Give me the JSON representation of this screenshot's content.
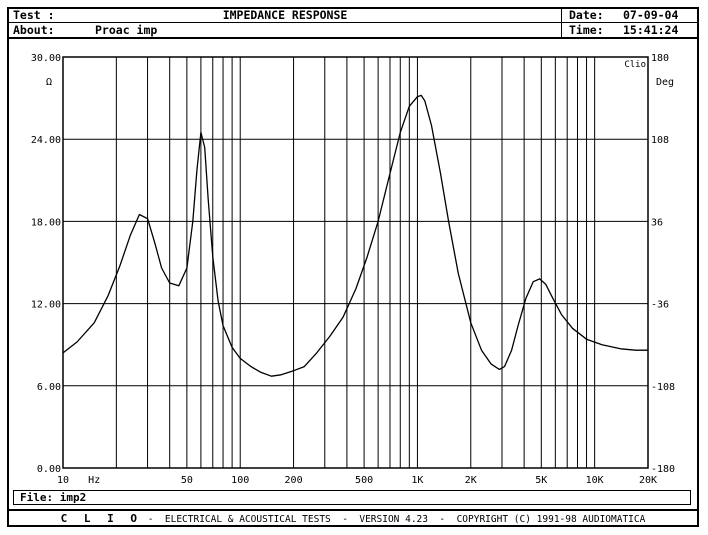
{
  "header": {
    "test_label": "Test :",
    "title": "IMPEDANCE RESPONSE",
    "about_label": "About:",
    "about_value": "Proac imp",
    "date_label": "Date:",
    "date_value": "07-09-04",
    "time_label": "Time:",
    "time_value": "15:41:24"
  },
  "file": {
    "label": "File:",
    "value": "imp2"
  },
  "footer": {
    "brand": "C L I O",
    "text": " -  ELECTRICAL & ACOUSTICAL TESTS  -  VERSION 4.23  -  COPYRIGHT (C) 1991-98 AUDIOMATICA"
  },
  "chart_data": {
    "type": "line",
    "title": "IMPEDANCE RESPONSE",
    "xscale": "log",
    "xlim": [
      10,
      20000
    ],
    "ylim": [
      0,
      30
    ],
    "y2lim": [
      -180,
      180
    ],
    "grid": true,
    "corner_label": "Clio",
    "ylabel_unit": "Ω",
    "y2label_unit": "Deg",
    "x_tick_labels": [
      {
        "value": 10,
        "label": "10"
      },
      {
        "value": 15,
        "label": "Hz"
      },
      {
        "value": 50,
        "label": "50"
      },
      {
        "value": 100,
        "label": "100"
      },
      {
        "value": 200,
        "label": "200"
      },
      {
        "value": 500,
        "label": "500"
      },
      {
        "value": 1000,
        "label": "1K"
      },
      {
        "value": 2000,
        "label": "2K"
      },
      {
        "value": 5000,
        "label": "5K"
      },
      {
        "value": 10000,
        "label": "10K"
      },
      {
        "value": 20000,
        "label": "20K"
      }
    ],
    "y_tick_labels": [
      "0.00",
      "6.00",
      "12.00",
      "18.00",
      "24.00",
      "30.00"
    ],
    "y2_tick_labels": [
      "-180",
      "-108",
      "-36",
      "36",
      "108",
      "180"
    ],
    "series": [
      {
        "color": "#000000",
        "x": [
          10,
          12,
          15,
          18,
          21,
          24,
          27,
          30,
          33,
          36,
          40,
          45,
          50,
          54,
          57,
          60,
          63,
          66,
          70,
          75,
          80,
          90,
          100,
          115,
          130,
          150,
          170,
          200,
          230,
          270,
          320,
          380,
          450,
          520,
          600,
          700,
          800,
          900,
          1000,
          1050,
          1100,
          1200,
          1350,
          1500,
          1700,
          2000,
          2300,
          2600,
          2900,
          3100,
          3400,
          3700,
          4100,
          4500,
          4900,
          5300,
          5800,
          6500,
          7500,
          9000,
          11000,
          14000,
          17000,
          20000
        ],
        "y": [
          8.4,
          9.2,
          10.6,
          12.6,
          14.8,
          17.0,
          18.5,
          18.2,
          16.4,
          14.6,
          13.5,
          13.3,
          14.6,
          18.0,
          21.8,
          24.5,
          23.4,
          19.6,
          15.4,
          12.2,
          10.4,
          8.8,
          8.0,
          7.4,
          7.0,
          6.7,
          6.8,
          7.1,
          7.4,
          8.4,
          9.6,
          11.0,
          13.1,
          15.4,
          18.0,
          21.5,
          24.5,
          26.4,
          27.1,
          27.2,
          26.8,
          25.0,
          21.5,
          18.0,
          14.2,
          10.6,
          8.6,
          7.6,
          7.2,
          7.4,
          8.6,
          10.4,
          12.4,
          13.6,
          13.8,
          13.4,
          12.4,
          11.2,
          10.2,
          9.4,
          9.0,
          8.7,
          8.6,
          8.6
        ]
      }
    ]
  }
}
